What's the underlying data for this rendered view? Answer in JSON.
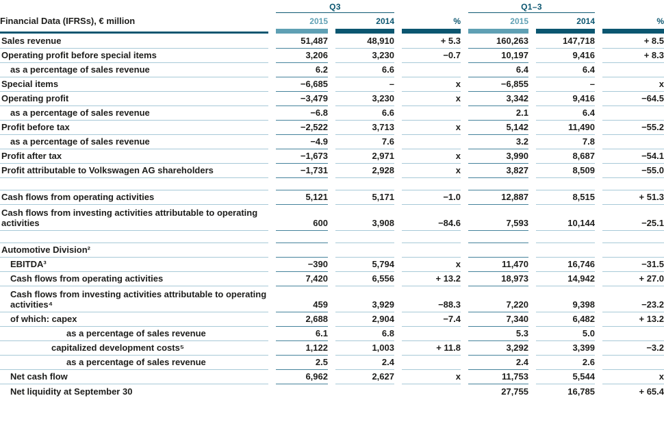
{
  "title": "Financial Data (IFRSs), € million",
  "header": {
    "groups": [
      {
        "label": "Q3"
      },
      {
        "label": "Q1–3"
      }
    ],
    "columns": [
      "2015",
      "2014",
      "%",
      "2015",
      "2014",
      "%"
    ]
  },
  "colors": {
    "dark": "#0b5670",
    "light": "#5fa0b4",
    "rule": "#a7c9d7",
    "rule_dark": "#44829b",
    "text": "#1d1d1b"
  },
  "table": {
    "rows": [
      {
        "label": "Sales revenue",
        "indent": 0,
        "values": [
          "51,487",
          "48,910",
          "+ 5.3",
          "160,263",
          "147,718",
          "+ 8.5"
        ]
      },
      {
        "label": "Operating profit before special items",
        "indent": 0,
        "values": [
          "3,206",
          "3,230",
          "−0.7",
          "10,197",
          "9,416",
          "+ 8.3"
        ]
      },
      {
        "label": "as a percentage of sales revenue",
        "indent": 1,
        "values": [
          "6.2",
          "6.6",
          "",
          "6.4",
          "6.4",
          ""
        ]
      },
      {
        "label": "Special items",
        "indent": 0,
        "values": [
          "−6,685",
          "–",
          "x",
          "−6,855",
          "–",
          "x"
        ]
      },
      {
        "label": "Operating profit",
        "indent": 0,
        "values": [
          "−3,479",
          "3,230",
          "x",
          "3,342",
          "9,416",
          "−64.5"
        ]
      },
      {
        "label": "as a percentage of sales revenue",
        "indent": 1,
        "values": [
          "−6.8",
          "6.6",
          "",
          "2.1",
          "6.4",
          ""
        ]
      },
      {
        "label": "Profit before tax",
        "indent": 0,
        "values": [
          "−2,522",
          "3,713",
          "x",
          "5,142",
          "11,490",
          "−55.2"
        ]
      },
      {
        "label": "as a percentage of sales revenue",
        "indent": 1,
        "values": [
          "−4.9",
          "7.6",
          "",
          "3.2",
          "7.8",
          ""
        ]
      },
      {
        "label": "Profit after tax",
        "indent": 0,
        "values": [
          "−1,673",
          "2,971",
          "x",
          "3,990",
          "8,687",
          "−54.1"
        ]
      },
      {
        "label": "Profit attributable to Volkswagen AG shareholders",
        "indent": 0,
        "values": [
          "−1,731",
          "2,928",
          "x",
          "3,827",
          "8,509",
          "−55.0"
        ]
      },
      {
        "spacer": true
      },
      {
        "label": "Cash flows from operating activities",
        "indent": 0,
        "values": [
          "5,121",
          "5,171",
          "−1.0",
          "12,887",
          "8,515",
          "+ 51.3"
        ]
      },
      {
        "label": "Cash flows from investing activities attributable to operating activities",
        "indent": 0,
        "tall": true,
        "values": [
          "600",
          "3,908",
          "−84.6",
          "7,593",
          "10,144",
          "−25.1"
        ]
      },
      {
        "spacer": true
      },
      {
        "label": "Automotive Division²",
        "indent": 0,
        "values": [
          "",
          "",
          "",
          "",
          "",
          ""
        ]
      },
      {
        "label": "EBITDA³",
        "indent": 1,
        "values": [
          "−390",
          "5,794",
          "x",
          "11,470",
          "16,746",
          "−31.5"
        ]
      },
      {
        "label": "Cash flows from operating activities",
        "indent": 1,
        "values": [
          "7,420",
          "6,556",
          "+ 13.2",
          "18,973",
          "14,942",
          "+ 27.0"
        ]
      },
      {
        "label": "Cash flows from investing activities attributable to operating activities⁴",
        "indent": 1,
        "tall": true,
        "values": [
          "459",
          "3,929",
          "−88.3",
          "7,220",
          "9,398",
          "−23.2"
        ]
      },
      {
        "label": "of which: capex",
        "indent": 1,
        "values": [
          "2,688",
          "2,904",
          "−7.4",
          "7,340",
          "6,482",
          "+ 13.2"
        ]
      },
      {
        "label": "as a percentage of sales revenue",
        "indent": 3,
        "values": [
          "6.1",
          "6.8",
          "",
          "5.3",
          "5.0",
          ""
        ]
      },
      {
        "label": "capitalized development costs⁵",
        "indent": 2,
        "values": [
          "1,122",
          "1,003",
          "+ 11.8",
          "3,292",
          "3,399",
          "−3.2"
        ]
      },
      {
        "label": "as a percentage of sales revenue",
        "indent": 3,
        "values": [
          "2.5",
          "2.4",
          "",
          "2.4",
          "2.6",
          ""
        ]
      },
      {
        "label": "Net cash flow",
        "indent": 1,
        "values": [
          "6,962",
          "2,627",
          "x",
          "11,753",
          "5,544",
          "x"
        ]
      },
      {
        "label": "Net liquidity at September 30",
        "indent": 1,
        "values": [
          "",
          "",
          "",
          "27,755",
          "16,785",
          "+ 65.4"
        ]
      }
    ]
  }
}
